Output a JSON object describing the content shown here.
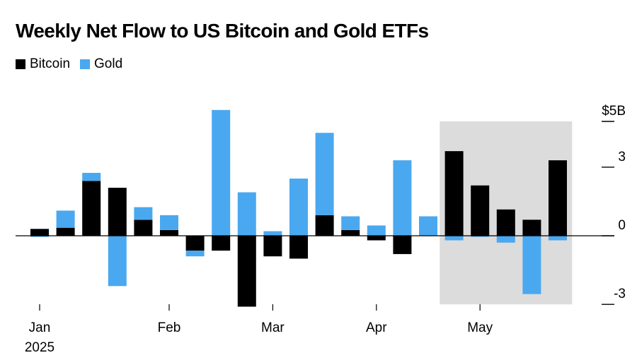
{
  "chart_data": {
    "type": "bar",
    "title": "Weekly Net Flow to US Bitcoin and Gold ETFs",
    "legend": [
      "Bitcoin",
      "Gold"
    ],
    "colors": {
      "Bitcoin": "#000000",
      "Gold": "#4aa8f0",
      "highlight": "#dcdcdc"
    },
    "ylim": [
      -3,
      5
    ],
    "y_ticks": [
      {
        "value": 5,
        "label": "$5B"
      },
      {
        "value": 3,
        "label": "3"
      },
      {
        "value": 0,
        "label": "0"
      },
      {
        "value": -3,
        "label": "-3"
      }
    ],
    "weeks": 21,
    "highlight_weeks": [
      17,
      21
    ],
    "x_ticks": [
      {
        "week": 1,
        "label": "Jan",
        "sublabel": "2025"
      },
      {
        "week": 6,
        "label": "Feb"
      },
      {
        "week": 10,
        "label": "Mar"
      },
      {
        "week": 14,
        "label": "Apr"
      },
      {
        "week": 18,
        "label": "May"
      }
    ],
    "series": [
      {
        "name": "Bitcoin",
        "values": [
          0.3,
          0.35,
          2.4,
          2.1,
          0.7,
          0.25,
          -0.65,
          -0.65,
          -3.1,
          -0.9,
          -1.0,
          0.9,
          0.25,
          -0.2,
          -0.8,
          0,
          3.7,
          2.2,
          1.15,
          0.7,
          3.3
        ]
      },
      {
        "name": "Gold",
        "values": [
          -0.05,
          1.1,
          2.75,
          -2.2,
          1.25,
          0.9,
          -0.9,
          5.5,
          1.9,
          0.2,
          2.5,
          4.5,
          0.85,
          0.45,
          3.3,
          0.85,
          -0.2,
          -0.05,
          -0.3,
          -2.55,
          -0.2
        ]
      }
    ]
  }
}
